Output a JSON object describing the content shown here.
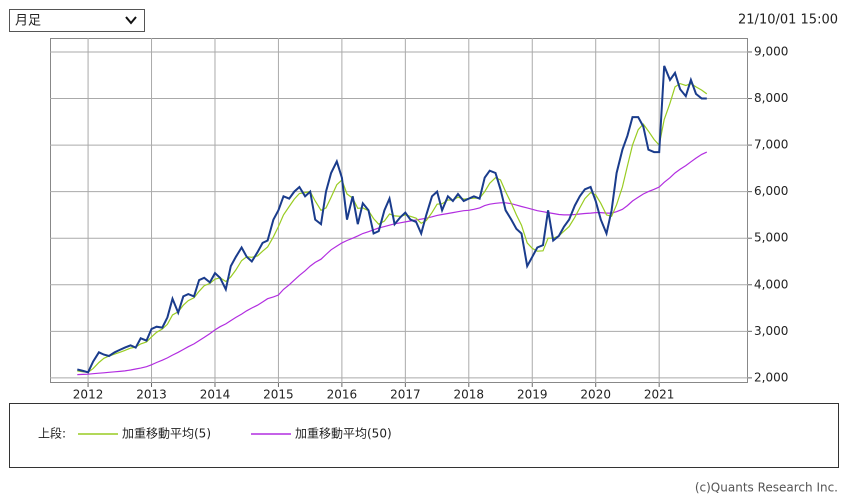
{
  "period_select": "月足",
  "timestamp": "21/10/01 15:00",
  "copyright": "(c)Quants Research Inc.",
  "chart_data": {
    "type": "line",
    "legend_title": "上段:",
    "x": [
      2011.83,
      2011.92,
      2012.0,
      2012.08,
      2012.17,
      2012.25,
      2012.33,
      2012.42,
      2012.5,
      2012.58,
      2012.67,
      2012.75,
      2012.83,
      2012.92,
      2013.0,
      2013.08,
      2013.17,
      2013.25,
      2013.33,
      2013.42,
      2013.5,
      2013.58,
      2013.67,
      2013.75,
      2013.83,
      2013.92,
      2014.0,
      2014.08,
      2014.17,
      2014.25,
      2014.33,
      2014.42,
      2014.5,
      2014.58,
      2014.67,
      2014.75,
      2014.83,
      2014.92,
      2015.0,
      2015.08,
      2015.17,
      2015.25,
      2015.33,
      2015.42,
      2015.5,
      2015.58,
      2015.67,
      2015.75,
      2015.83,
      2015.92,
      2016.0,
      2016.08,
      2016.17,
      2016.25,
      2016.33,
      2016.42,
      2016.5,
      2016.58,
      2016.67,
      2016.75,
      2016.83,
      2016.92,
      2017.0,
      2017.08,
      2017.17,
      2017.25,
      2017.33,
      2017.42,
      2017.5,
      2017.58,
      2017.67,
      2017.75,
      2017.83,
      2017.92,
      2018.0,
      2018.08,
      2018.17,
      2018.25,
      2018.33,
      2018.42,
      2018.5,
      2018.58,
      2018.67,
      2018.75,
      2018.83,
      2018.92,
      2019.0,
      2019.08,
      2019.17,
      2019.25,
      2019.33,
      2019.42,
      2019.5,
      2019.58,
      2019.67,
      2019.75,
      2019.83,
      2019.92,
      2020.0,
      2020.08,
      2020.17,
      2020.25,
      2020.33,
      2020.42,
      2020.5,
      2020.58,
      2020.67,
      2020.75,
      2020.83,
      2020.92,
      2021.0,
      2021.08,
      2021.17,
      2021.25,
      2021.33,
      2021.42,
      2021.5,
      2021.58,
      2021.67,
      2021.75
    ],
    "series": [
      {
        "color": "#1a3c8c",
        "values": [
          2180,
          2150,
          2120,
          2350,
          2550,
          2500,
          2470,
          2550,
          2600,
          2650,
          2700,
          2650,
          2850,
          2800,
          3050,
          3100,
          3080,
          3300,
          3700,
          3400,
          3750,
          3800,
          3750,
          4100,
          4150,
          4050,
          4250,
          4150,
          3900,
          4400,
          4600,
          4800,
          4600,
          4500,
          4700,
          4900,
          4950,
          5400,
          5600,
          5900,
          5850,
          6000,
          6100,
          5900,
          6000,
          5400,
          5300,
          6000,
          6400,
          6650,
          6300,
          5400,
          5900,
          5300,
          5750,
          5600,
          5100,
          5150,
          5600,
          5850,
          5300,
          5450,
          5550,
          5400,
          5350,
          5100,
          5500,
          5900,
          6000,
          5600,
          5900,
          5800,
          5950,
          5800,
          5850,
          5900,
          5850,
          6300,
          6450,
          6400,
          6050,
          5600,
          5400,
          5200,
          5100,
          4400,
          4600,
          4800,
          4850,
          5600,
          4950,
          5050,
          5250,
          5400,
          5700,
          5900,
          6050,
          6100,
          5800,
          5400,
          5100,
          5600,
          6400,
          6900,
          7200,
          7600,
          7600,
          7400,
          6900,
          6850,
          6850,
          8700,
          8400,
          8550,
          8200,
          8050,
          8400,
          8100,
          8000,
          8000
        ]
      },
      {
        "name": "加重移動平均(5)",
        "color": "#99cc22",
        "values": [
          2150,
          2130,
          2120,
          2200,
          2330,
          2420,
          2470,
          2510,
          2550,
          2590,
          2640,
          2660,
          2730,
          2770,
          2880,
          2980,
          3050,
          3150,
          3350,
          3420,
          3560,
          3660,
          3720,
          3860,
          3980,
          4030,
          4120,
          4150,
          4070,
          4170,
          4320,
          4520,
          4600,
          4590,
          4620,
          4720,
          4810,
          5030,
          5250,
          5500,
          5680,
          5840,
          5960,
          5980,
          6000,
          5800,
          5600,
          5650,
          5880,
          6150,
          6250,
          5950,
          5860,
          5640,
          5650,
          5590,
          5420,
          5300,
          5370,
          5520,
          5480,
          5470,
          5500,
          5470,
          5430,
          5320,
          5380,
          5550,
          5730,
          5740,
          5820,
          5820,
          5880,
          5840,
          5850,
          5860,
          5860,
          6000,
          6180,
          6300,
          6250,
          6000,
          5750,
          5500,
          5280,
          4900,
          4780,
          4720,
          4730,
          5000,
          5000,
          5050,
          5150,
          5250,
          5450,
          5650,
          5850,
          5980,
          5930,
          5750,
          5500,
          5470,
          5720,
          6100,
          6550,
          7000,
          7330,
          7450,
          7300,
          7120,
          7000,
          7550,
          7900,
          8250,
          8320,
          8280,
          8320,
          8250,
          8180,
          8100
        ]
      },
      {
        "name": "加重移動平均(50)",
        "color": "#b22ee0",
        "values": [
          2070,
          2075,
          2080,
          2090,
          2100,
          2110,
          2120,
          2130,
          2140,
          2150,
          2170,
          2190,
          2210,
          2240,
          2280,
          2330,
          2380,
          2430,
          2490,
          2550,
          2610,
          2670,
          2730,
          2800,
          2870,
          2950,
          3030,
          3100,
          3160,
          3230,
          3300,
          3370,
          3440,
          3500,
          3560,
          3630,
          3700,
          3740,
          3780,
          3900,
          4000,
          4100,
          4200,
          4300,
          4400,
          4480,
          4550,
          4650,
          4750,
          4830,
          4900,
          4950,
          5000,
          5050,
          5100,
          5140,
          5180,
          5220,
          5250,
          5280,
          5310,
          5330,
          5350,
          5370,
          5390,
          5410,
          5430,
          5460,
          5490,
          5510,
          5530,
          5550,
          5570,
          5590,
          5600,
          5620,
          5650,
          5700,
          5730,
          5750,
          5760,
          5760,
          5740,
          5710,
          5680,
          5650,
          5620,
          5590,
          5570,
          5550,
          5530,
          5510,
          5500,
          5500,
          5510,
          5520,
          5530,
          5540,
          5550,
          5550,
          5540,
          5540,
          5570,
          5620,
          5700,
          5800,
          5880,
          5950,
          6000,
          6050,
          6100,
          6200,
          6300,
          6400,
          6480,
          6560,
          6640,
          6720,
          6800,
          6850
        ]
      }
    ],
    "xlim": [
      2011.4,
      2022.4
    ],
    "xticks": [
      2012,
      2013,
      2014,
      2015,
      2016,
      2017,
      2018,
      2019,
      2020,
      2021
    ],
    "ylim": [
      1890,
      9300
    ],
    "yticks": [
      {
        "value": 2000,
        "label": "2,000"
      },
      {
        "value": 3000,
        "label": "3,000"
      },
      {
        "value": 4000,
        "label": "4,000"
      },
      {
        "value": 5000,
        "label": "5,000"
      },
      {
        "value": 6000,
        "label": "6,000"
      },
      {
        "value": 7000,
        "label": "7,000"
      },
      {
        "value": 8000,
        "label": "8,000"
      },
      {
        "value": 9000,
        "label": "9,000"
      }
    ],
    "grid": true
  }
}
